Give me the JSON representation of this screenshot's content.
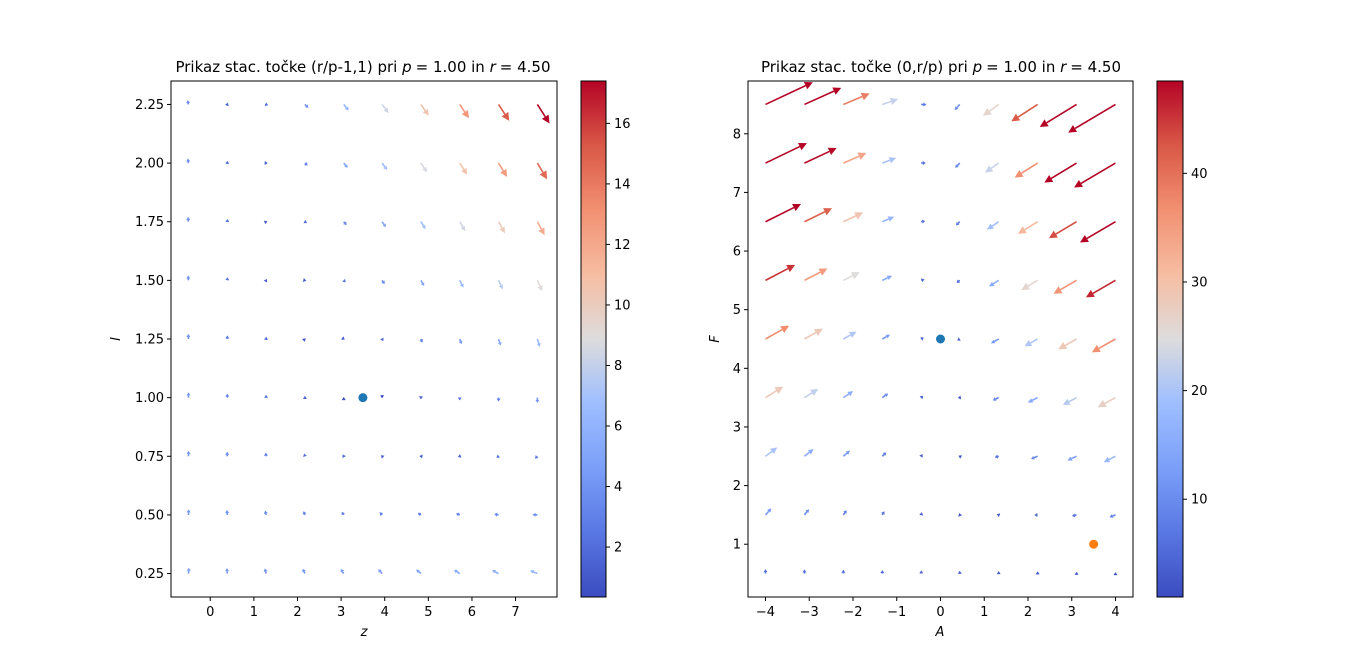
{
  "chart_data": [
    {
      "type": "quiver",
      "title": "Prikaz stac. točke (r/p-1,1) pri p = 1.00 in r = 4.50",
      "title_parts": {
        "prefix": "Prikaz stac. točke (r/p-1,1) pri ",
        "p_var": "p",
        "p_value": "= 1.00",
        "mid": " in ",
        "r_var": "r",
        "r_value": "= 4.50"
      },
      "xlabel": "z",
      "ylabel": "I",
      "xlim": [
        -0.9,
        7.95
      ],
      "ylim": [
        0.15,
        2.35
      ],
      "xticks": [
        0,
        1,
        2,
        3,
        4,
        5,
        6,
        7
      ],
      "xtick_labels": [
        "0",
        "1",
        "2",
        "3",
        "4",
        "5",
        "6",
        "7"
      ],
      "yticks": [
        0.25,
        0.5,
        0.75,
        1.0,
        1.25,
        1.5,
        1.75,
        2.0,
        2.25
      ],
      "ytick_labels": [
        "0.25",
        "0.50",
        "0.75",
        "1.00",
        "1.25",
        "1.50",
        "1.75",
        "2.00",
        "2.25"
      ],
      "grid_x": [
        -0.5,
        0.39,
        1.28,
        2.17,
        3.06,
        3.94,
        4.83,
        5.72,
        6.61,
        7.5
      ],
      "grid_y": [
        0.25,
        0.5,
        0.75,
        1.0,
        1.25,
        1.5,
        1.75,
        2.0,
        2.25
      ],
      "field": "dz = z*(I - 1), dI = r - p*I - z*I",
      "params": {
        "p": 1.0,
        "r": 4.5
      },
      "point": {
        "x": 3.5,
        "y": 1.0,
        "color": "#1f77b4"
      },
      "colorbar": {
        "cmap": "coolwarm",
        "min": 0.35,
        "max": 17.4,
        "ticks": [
          2,
          4,
          6,
          8,
          10,
          12,
          14,
          16
        ],
        "tick_labels": [
          "2",
          "4",
          "6",
          "8",
          "10",
          "12",
          "14",
          "16"
        ]
      }
    },
    {
      "type": "quiver",
      "title": "Prikaz stac. točke (0,r/p) pri p = 1.00 in r = 4.50",
      "title_parts": {
        "prefix": "Prikaz stac. točke (0,r/p) pri ",
        "p_var": "p",
        "p_value": "= 1.00",
        "mid": " in ",
        "r_var": "r",
        "r_value": "= 4.50"
      },
      "xlabel": "A",
      "ylabel": "F",
      "xlim": [
        -4.4,
        4.4
      ],
      "ylim": [
        0.1,
        8.9
      ],
      "xticks": [
        -4,
        -3,
        -2,
        -1,
        0,
        1,
        2,
        3,
        4
      ],
      "xtick_labels": [
        "−4",
        "−3",
        "−2",
        "−1",
        "0",
        "1",
        "2",
        "3",
        "4"
      ],
      "yticks": [
        1,
        2,
        3,
        4,
        5,
        6,
        7,
        8
      ],
      "ytick_labels": [
        "1",
        "2",
        "3",
        "4",
        "5",
        "6",
        "7",
        "8"
      ],
      "grid_x": [
        -4.0,
        -3.11,
        -2.22,
        -1.33,
        -0.44,
        0.44,
        1.33,
        2.22,
        3.11,
        4.0
      ],
      "grid_y": [
        0.5,
        1.5,
        2.5,
        3.5,
        4.5,
        5.5,
        6.5,
        7.5,
        8.5
      ],
      "field": "dA = -A*(F - 1) - F*A, dF = -A*F - (F - 4.5)",
      "params": {
        "p": 1.0,
        "r": 4.5
      },
      "points": [
        {
          "x": 0.0,
          "y": 4.5,
          "color": "#1f77b4"
        },
        {
          "x": 3.5,
          "y": 1.0,
          "color": "#ff7f0e"
        }
      ],
      "colorbar": {
        "cmap": "coolwarm",
        "min": 1.0,
        "max": 48.5,
        "ticks": [
          10,
          20,
          30,
          40
        ],
        "tick_labels": [
          "10",
          "20",
          "30",
          "40"
        ]
      }
    }
  ]
}
